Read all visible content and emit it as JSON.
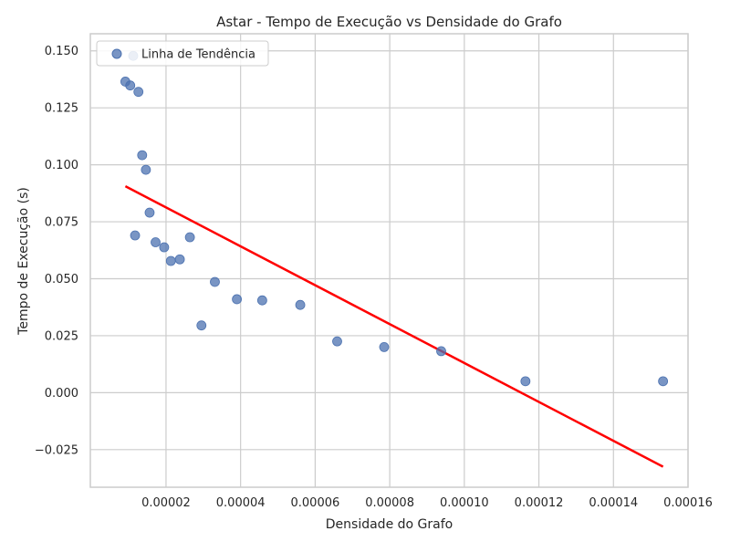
{
  "chart_data": {
    "type": "scatter",
    "title": "Astar - Tempo de Execução vs Densidade do Grafo",
    "xlabel": "Densidade do Grafo",
    "ylabel": "Tempo de Execução (s)",
    "xlim": [
      -3e-07,
      0.00016
    ],
    "ylim": [
      -0.0415,
      0.1575
    ],
    "x_ticks": [
      2e-05,
      4e-05,
      6e-05,
      8e-05,
      0.0001,
      0.00012,
      0.00014,
      0.00016
    ],
    "x_tick_labels": [
      "0.00002",
      "0.00004",
      "0.00006",
      "0.00008",
      "0.00010",
      "0.00012",
      "0.00014",
      "0.00016"
    ],
    "y_ticks": [
      -0.025,
      0.0,
      0.025,
      0.05,
      0.075,
      0.1,
      0.125,
      0.15
    ],
    "y_tick_labels": [
      "−0.025",
      "0.000",
      "0.025",
      "0.050",
      "0.075",
      "0.100",
      "0.125",
      "0.150"
    ],
    "grid": true,
    "legend": {
      "position": "top-left",
      "entries": [
        "Linha de Tendência"
      ]
    },
    "series": [
      {
        "kind": "scatter",
        "color": "#4c72b0",
        "points": [
          {
            "x": 9.1e-06,
            "y": 0.1365
          },
          {
            "x": 1.04e-05,
            "y": 0.1348
          },
          {
            "x": 1.12e-05,
            "y": 0.1478
          },
          {
            "x": 1.17e-05,
            "y": 0.069
          },
          {
            "x": 1.26e-05,
            "y": 0.132
          },
          {
            "x": 1.36e-05,
            "y": 0.1042
          },
          {
            "x": 1.46e-05,
            "y": 0.0978
          },
          {
            "x": 1.56e-05,
            "y": 0.079
          },
          {
            "x": 1.72e-05,
            "y": 0.066
          },
          {
            "x": 1.95e-05,
            "y": 0.0638
          },
          {
            "x": 2.13e-05,
            "y": 0.0578
          },
          {
            "x": 2.37e-05,
            "y": 0.0585
          },
          {
            "x": 2.64e-05,
            "y": 0.0682
          },
          {
            "x": 2.95e-05,
            "y": 0.0295
          },
          {
            "x": 3.31e-05,
            "y": 0.0486
          },
          {
            "x": 3.9e-05,
            "y": 0.041
          },
          {
            "x": 4.58e-05,
            "y": 0.0405
          },
          {
            "x": 5.6e-05,
            "y": 0.0385
          },
          {
            "x": 6.59e-05,
            "y": 0.0225
          },
          {
            "x": 7.85e-05,
            "y": 0.02
          },
          {
            "x": 9.38e-05,
            "y": 0.0182
          },
          {
            "x": 0.0001164,
            "y": 0.005
          },
          {
            "x": 0.0001533,
            "y": 0.005
          }
        ]
      },
      {
        "kind": "line",
        "color": "#ff0000",
        "points": [
          {
            "x": 9.1e-06,
            "y": 0.0906
          },
          {
            "x": 0.0001533,
            "y": -0.0325
          }
        ]
      }
    ]
  }
}
